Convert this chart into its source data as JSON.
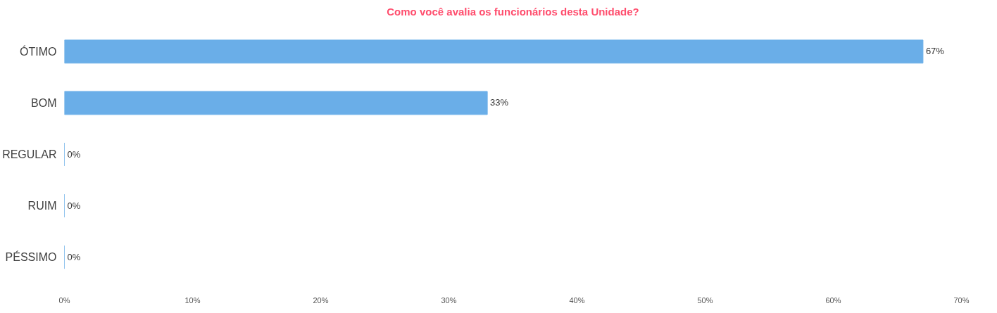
{
  "chart_data": {
    "type": "bar",
    "orientation": "horizontal",
    "title": "Como você avalia os funcionários desta Unidade?",
    "categories": [
      "ÓTIMO",
      "BOM",
      "REGULAR",
      "RUIM",
      "PÉSSIMO"
    ],
    "values": [
      67,
      33,
      0,
      0,
      0
    ],
    "value_labels": [
      "67%",
      "33%",
      "0%",
      "0%",
      "0%"
    ],
    "color": "#6aaee8",
    "xlim": [
      0,
      70
    ],
    "xticks": [
      {
        "value": 0,
        "label": "0%"
      },
      {
        "value": 10,
        "label": "10%"
      },
      {
        "value": 20,
        "label": "20%"
      },
      {
        "value": 30,
        "label": "30%"
      },
      {
        "value": 40,
        "label": "40%"
      },
      {
        "value": 50,
        "label": "50%"
      },
      {
        "value": 60,
        "label": "60%"
      },
      {
        "value": 70,
        "label": "70%"
      }
    ],
    "grid": false
  }
}
